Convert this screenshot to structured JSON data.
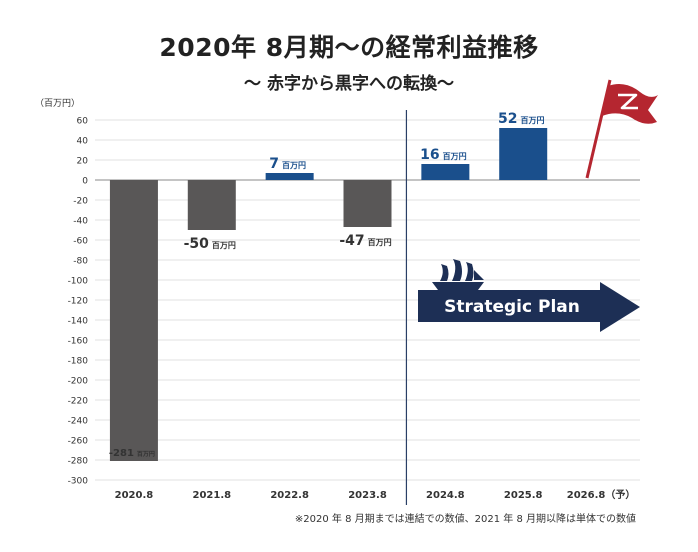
{
  "title": "2020年 8月期〜の経常利益推移",
  "subtitle": "〜 赤字から黒字への転換〜",
  "footnote": "※2020 年 8 月期までは連結での数値、2021 年 8 月期以降は単体での数値",
  "chart_data": {
    "type": "bar",
    "unit_label": "（百万円）",
    "categories": [
      "2020.8",
      "2021.8",
      "2022.8",
      "2023.8",
      "2024.8",
      "2025.8",
      "2026.8（予）"
    ],
    "values": [
      -281,
      -50,
      7,
      -47,
      16,
      52,
      null
    ],
    "value_labels": [
      "-281",
      "-50",
      "7",
      "-47",
      "16",
      "52",
      ""
    ],
    "value_unit": "百万円",
    "ylim": [
      -300,
      60
    ],
    "yticks": [
      60,
      40,
      20,
      0,
      -20,
      -40,
      -60,
      -80,
      -100,
      -120,
      -140,
      -160,
      -180,
      -200,
      -220,
      -240,
      -260,
      -280,
      -300
    ],
    "grid": true,
    "colors": {
      "negative": "#595757",
      "positive": "#1a4f8c",
      "arrow": "#1d2f55",
      "flag": "#b52630",
      "divider": "#2a3f66"
    },
    "annotation": {
      "text": "Strategic Plan",
      "start_category": "2024.8"
    }
  }
}
